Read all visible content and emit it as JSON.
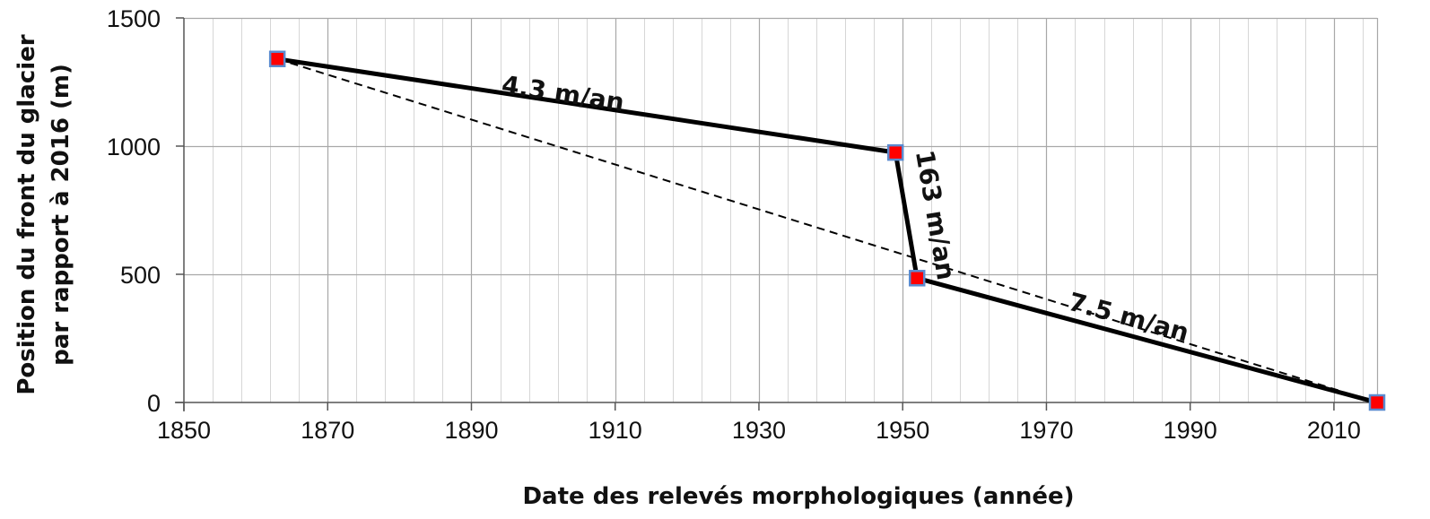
{
  "chart_data": {
    "type": "line",
    "title": "",
    "xlabel": "Date des relevés morphologiques (année)",
    "ylabel_lines": [
      "Position du front du glacier",
      "par rapport à 2016 (m)"
    ],
    "xlim": [
      1850,
      2016
    ],
    "ylim": [
      0,
      1500
    ],
    "xticks": [
      1850,
      1870,
      1890,
      1910,
      1930,
      1950,
      1970,
      1990,
      2010
    ],
    "yticks": [
      0,
      500,
      1000,
      1500
    ],
    "x_minor_step": 4,
    "grid": true,
    "legend": "none",
    "series": [
      {
        "style": "solid",
        "color": "#000000",
        "marker_fill": "#ff0000",
        "marker_edge": "#5b8bd0",
        "points": [
          {
            "x": 1863,
            "y": 1340
          },
          {
            "x": 1949,
            "y": 975
          },
          {
            "x": 1952,
            "y": 485
          },
          {
            "x": 2016,
            "y": 0
          }
        ]
      },
      {
        "style": "dashed",
        "color": "#000000",
        "points": [
          {
            "x": 1863,
            "y": 1340
          },
          {
            "x": 2016,
            "y": 0
          }
        ]
      }
    ],
    "annotations": [
      {
        "text": "4.3 m/an",
        "segment": [
          0,
          1
        ]
      },
      {
        "text": "163 m/an",
        "segment": [
          1,
          2
        ]
      },
      {
        "text": "7.5 m/an",
        "segment": [
          2,
          3
        ]
      }
    ]
  }
}
